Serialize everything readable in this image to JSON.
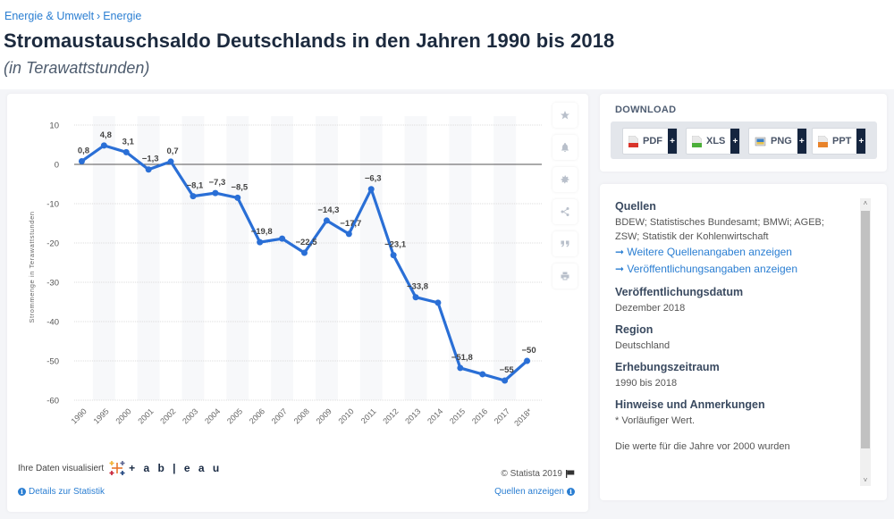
{
  "breadcrumb": [
    "Energie & Umwelt",
    "Energie"
  ],
  "breadcrumb_separator": "›",
  "title": "Stromaustauschsaldo Deutschlands in den Jahren 1990 bis 2018",
  "subtitle": "(in Terawattstunden)",
  "chart_data": {
    "type": "line",
    "title": "Stromaustauschsaldo Deutschlands in den Jahren 1990 bis 2018",
    "subtitle": "(in Terawattstunden)",
    "xlabel": "",
    "ylabel": "Strommenge in Terawattstunden",
    "categories": [
      "1990",
      "1995",
      "2000",
      "2001",
      "2002",
      "2003",
      "2004",
      "2005",
      "2006",
      "2007",
      "2008",
      "2009",
      "2010",
      "2011",
      "2012",
      "2013",
      "2014",
      "2015",
      "2016",
      "2017",
      "2018*"
    ],
    "series": [
      {
        "name": "Stromaustauschsaldo",
        "color": "#2a6fd6",
        "values": [
          0.8,
          4.8,
          3.1,
          -1.3,
          0.7,
          -8.1,
          -7.3,
          -8.5,
          -19.8,
          -18.9,
          -22.5,
          -14.3,
          -17.7,
          -6.3,
          -23.1,
          -33.8,
          -35.2,
          -51.8,
          -53.4,
          -55,
          -50
        ],
        "data_labels": [
          "0,8",
          "4,8",
          "3,1",
          "-1,3",
          "0,7",
          "-8,1",
          "-7,3",
          "-8,5",
          "-19,8",
          "",
          "-22,5",
          "-14,3",
          "-17,7",
          "-6,3",
          "-23,1",
          "-33,8",
          "",
          "-51,8",
          "",
          "-55",
          "-50"
        ]
      }
    ],
    "yticks": [
      10,
      0,
      -10,
      -20,
      -30,
      -40,
      -50,
      -60
    ],
    "ytick_labels": [
      "10",
      "0",
      "-10",
      "-20",
      "-30",
      "-40",
      "-50",
      "-60"
    ],
    "ylim": [
      -60,
      10
    ],
    "grid": true,
    "legend": "none"
  },
  "side_tools": [
    {
      "name": "star-icon",
      "glyph": "★"
    },
    {
      "name": "bell-icon",
      "glyph": "bell"
    },
    {
      "name": "gear-icon",
      "glyph": "gear"
    },
    {
      "name": "share-icon",
      "glyph": "share"
    },
    {
      "name": "quote-icon",
      "glyph": "99"
    },
    {
      "name": "print-icon",
      "glyph": "print"
    }
  ],
  "chart_footer": {
    "visualized_by": "Ihre Daten visualisiert",
    "tableau_word": "+ a b | e a u",
    "details_link": "Details zur Statistik",
    "copyright": "© Statista 2019",
    "sources_link": "Quellen anzeigen",
    "info_glyph": "i"
  },
  "download": {
    "title": "DOWNLOAD",
    "buttons": [
      {
        "label": "PDF",
        "plus": "+",
        "icon": "pdf-file-icon",
        "color": "#d9342b"
      },
      {
        "label": "XLS",
        "plus": "+",
        "icon": "xls-file-icon",
        "color": "#4caf3a"
      },
      {
        "label": "PNG",
        "plus": "+",
        "icon": "png-file-icon",
        "color": "#3b7fc4"
      },
      {
        "label": "PPT",
        "plus": "+",
        "icon": "ppt-file-icon",
        "color": "#e8832b"
      }
    ]
  },
  "info": {
    "sources_heading": "Quellen",
    "sources_text": "BDEW; Statistisches Bundesamt; BMWi; AGEB; ZSW; Statistik der Kohlenwirtschaft",
    "more_sources_link": "➞ Weitere Quellenangaben anzeigen",
    "publication_info_link": "➞ Veröffentlichungsangaben anzeigen",
    "pub_date_heading": "Veröffentlichungsdatum",
    "pub_date": "Dezember 2018",
    "region_heading": "Region",
    "region": "Deutschland",
    "period_heading": "Erhebungszeitraum",
    "period": "1990 bis 2018",
    "notes_heading": "Hinweise und Anmerkungen",
    "notes_1": "* Vorläufiger Wert.",
    "notes_2": "Die werte für die Jahre vor 2000 wurden",
    "scroll_up": "˄",
    "scroll_down": "˅"
  }
}
